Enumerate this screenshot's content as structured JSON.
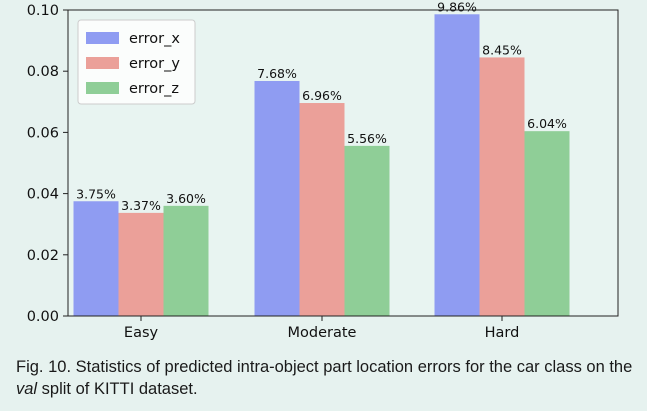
{
  "chart_data": {
    "type": "bar",
    "categories": [
      "Easy",
      "Moderate",
      "Hard"
    ],
    "series": [
      {
        "name": "error_x",
        "values": [
          0.0375,
          0.0768,
          0.0986
        ],
        "labels": [
          "3.75%",
          "7.68%",
          "9.86%"
        ],
        "color": "#8f9cf2"
      },
      {
        "name": "error_y",
        "values": [
          0.0337,
          0.0696,
          0.0845
        ],
        "labels": [
          "3.37%",
          "6.96%",
          "8.45%"
        ],
        "color": "#eba099"
      },
      {
        "name": "error_z",
        "values": [
          0.036,
          0.0556,
          0.0604
        ],
        "labels": [
          "3.60%",
          "5.56%",
          "6.04%"
        ],
        "color": "#8fce97"
      }
    ],
    "ylim": [
      0,
      0.1
    ],
    "yticks": [
      {
        "value": 0.0,
        "label": "0.00"
      },
      {
        "value": 0.02,
        "label": "0.02"
      },
      {
        "value": 0.04,
        "label": "0.04"
      },
      {
        "value": 0.06,
        "label": "0.06"
      },
      {
        "value": 0.08,
        "label": "0.08"
      },
      {
        "value": 0.1,
        "label": "0.10"
      }
    ],
    "legend_position": "top-left",
    "grid": false
  },
  "caption": {
    "part1": "Fig. 10. Statistics of predicted intra-object part location errors for the car class on the ",
    "italic": "val",
    "part2": " split of KITTI dataset."
  }
}
